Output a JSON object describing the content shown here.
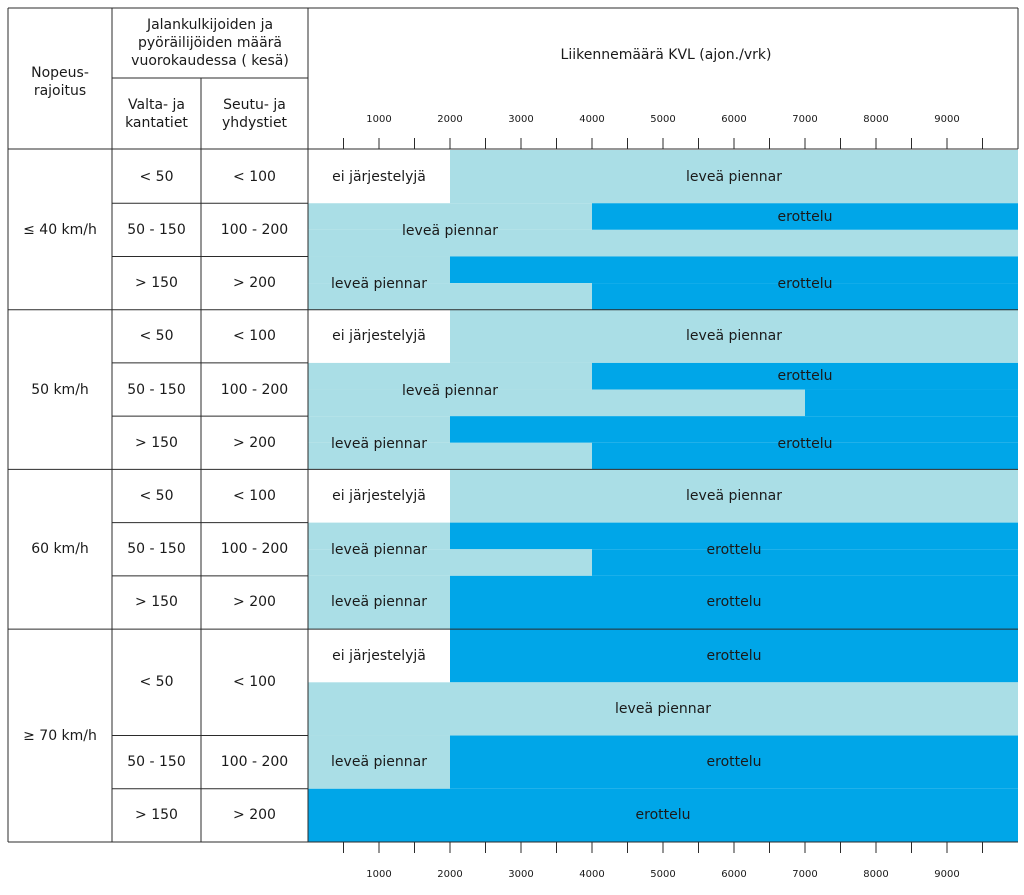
{
  "chart_data": {
    "type": "table",
    "title": "Liikennemäärä KVL (ajon./vrk)",
    "headers": {
      "speed": "Nopeus-\nrajoitus",
      "ped": "Jalankulkijoiden ja\npyöräilijöiden määrä\nvuorokaudessa ( kesä)",
      "main_roads": "Valta- ja\nkantatiet",
      "regional_roads": "Seutu- ja\nyhdystiet"
    },
    "x_axis": {
      "min": 0,
      "max": 10000,
      "tick_labels": [
        "1000",
        "2000",
        "3000",
        "4000",
        "5000",
        "6000",
        "7000",
        "8000",
        "9000"
      ],
      "tick_values": [
        1000,
        2000,
        3000,
        4000,
        5000,
        6000,
        7000,
        8000,
        9000
      ],
      "minor_ticks": [
        500,
        1500,
        2500,
        3500,
        4500,
        5500,
        6500,
        7500,
        8500,
        9500
      ]
    },
    "colors": {
      "none": "#ffffff",
      "shoulder": "#aadee6",
      "separation": "#00a6e8",
      "grid": "#2b2b2b"
    },
    "categories": {
      "none": "ei järjestelyjä",
      "shoulder": "leveä piennar",
      "separation": "erottelu"
    },
    "groups": [
      {
        "speed": "≤ 40 km/h",
        "rows": [
          {
            "valta": "< 50",
            "seutu": "< 100",
            "bands": [
              [
                {
                  "from": 0,
                  "to": 2000,
                  "cat": "none",
                  "label": "ei järjestelyjä"
                },
                {
                  "from": 2000,
                  "to": 10000,
                  "cat": "shoulder",
                  "label": "leveä piennar"
                }
              ]
            ]
          },
          {
            "valta": "50 - 150",
            "seutu": "100 - 200",
            "bands": [
              [
                {
                  "from": 0,
                  "to": 4000,
                  "cat": "shoulder",
                  "label": ""
                },
                {
                  "from": 4000,
                  "to": 10000,
                  "cat": "separation",
                  "label": "erottelu"
                }
              ],
              [
                {
                  "from": 0,
                  "to": 10000,
                  "cat": "shoulder",
                  "label": ""
                }
              ]
            ],
            "merged_labels": [
              {
                "text": "leveä piennar",
                "from": 0,
                "to": 4000
              }
            ]
          },
          {
            "valta": "> 150",
            "seutu": "> 200",
            "bands": [
              [
                {
                  "from": 0,
                  "to": 2000,
                  "cat": "shoulder",
                  "label": ""
                },
                {
                  "from": 2000,
                  "to": 10000,
                  "cat": "separation",
                  "label": ""
                }
              ],
              [
                {
                  "from": 0,
                  "to": 4000,
                  "cat": "shoulder",
                  "label": ""
                },
                {
                  "from": 4000,
                  "to": 10000,
                  "cat": "separation",
                  "label": ""
                }
              ]
            ],
            "merged_labels": [
              {
                "text": "leveä piennar",
                "from": 0,
                "to": 2000
              },
              {
                "text": "erottelu",
                "from": 4000,
                "to": 10000
              }
            ]
          }
        ]
      },
      {
        "speed": "50 km/h",
        "rows": [
          {
            "valta": "< 50",
            "seutu": "< 100",
            "bands": [
              [
                {
                  "from": 0,
                  "to": 2000,
                  "cat": "none",
                  "label": "ei järjestelyjä"
                },
                {
                  "from": 2000,
                  "to": 10000,
                  "cat": "shoulder",
                  "label": "leveä piennar"
                }
              ]
            ]
          },
          {
            "valta": "50 - 150",
            "seutu": "100 - 200",
            "bands": [
              [
                {
                  "from": 0,
                  "to": 4000,
                  "cat": "shoulder",
                  "label": ""
                },
                {
                  "from": 4000,
                  "to": 10000,
                  "cat": "separation",
                  "label": "erottelu"
                }
              ],
              [
                {
                  "from": 0,
                  "to": 7000,
                  "cat": "shoulder",
                  "label": ""
                },
                {
                  "from": 7000,
                  "to": 10000,
                  "cat": "separation",
                  "label": ""
                }
              ]
            ],
            "merged_labels": [
              {
                "text": "leveä piennar",
                "from": 0,
                "to": 4000
              }
            ]
          },
          {
            "valta": "> 150",
            "seutu": "> 200",
            "bands": [
              [
                {
                  "from": 0,
                  "to": 2000,
                  "cat": "shoulder",
                  "label": ""
                },
                {
                  "from": 2000,
                  "to": 10000,
                  "cat": "separation",
                  "label": ""
                }
              ],
              [
                {
                  "from": 0,
                  "to": 4000,
                  "cat": "shoulder",
                  "label": ""
                },
                {
                  "from": 4000,
                  "to": 10000,
                  "cat": "separation",
                  "label": ""
                }
              ]
            ],
            "merged_labels": [
              {
                "text": "leveä piennar",
                "from": 0,
                "to": 2000
              },
              {
                "text": "erottelu",
                "from": 4000,
                "to": 10000
              }
            ]
          }
        ]
      },
      {
        "speed": "60 km/h",
        "rows": [
          {
            "valta": "< 50",
            "seutu": "< 100",
            "bands": [
              [
                {
                  "from": 0,
                  "to": 2000,
                  "cat": "none",
                  "label": "ei järjestelyjä"
                },
                {
                  "from": 2000,
                  "to": 10000,
                  "cat": "shoulder",
                  "label": "leveä piennar"
                }
              ]
            ]
          },
          {
            "valta": "50 - 150",
            "seutu": "100 - 200",
            "bands": [
              [
                {
                  "from": 0,
                  "to": 2000,
                  "cat": "shoulder",
                  "label": ""
                },
                {
                  "from": 2000,
                  "to": 10000,
                  "cat": "separation",
                  "label": ""
                }
              ],
              [
                {
                  "from": 0,
                  "to": 4000,
                  "cat": "shoulder",
                  "label": ""
                },
                {
                  "from": 4000,
                  "to": 10000,
                  "cat": "separation",
                  "label": ""
                }
              ]
            ],
            "merged_labels": [
              {
                "text": "leveä piennar",
                "from": 0,
                "to": 2000
              },
              {
                "text": "erottelu",
                "from": 2000,
                "to": 10000
              }
            ]
          },
          {
            "valta": "> 150",
            "seutu": "> 200",
            "bands": [
              [
                {
                  "from": 0,
                  "to": 2000,
                  "cat": "shoulder",
                  "label": "leveä piennar"
                },
                {
                  "from": 2000,
                  "to": 10000,
                  "cat": "separation",
                  "label": "erottelu"
                }
              ]
            ]
          }
        ]
      },
      {
        "speed": "≥ 70 km/h",
        "rows": [
          {
            "valta": "< 50",
            "seutu": "< 100",
            "tall": true,
            "bands": [
              [
                {
                  "from": 0,
                  "to": 2000,
                  "cat": "none",
                  "label": "ei järjestelyjä"
                },
                {
                  "from": 2000,
                  "to": 10000,
                  "cat": "separation",
                  "label": "erottelu"
                }
              ],
              [
                {
                  "from": 0,
                  "to": 10000,
                  "cat": "shoulder",
                  "label": "leveä piennar"
                }
              ]
            ]
          },
          {
            "valta": "50 - 150",
            "seutu": "100 - 200",
            "bands": [
              [
                {
                  "from": 0,
                  "to": 2000,
                  "cat": "shoulder",
                  "label": "leveä piennar"
                },
                {
                  "from": 2000,
                  "to": 10000,
                  "cat": "separation",
                  "label": "erottelu"
                }
              ]
            ]
          },
          {
            "valta": "> 150",
            "seutu": "> 200",
            "bands": [
              [
                {
                  "from": 0,
                  "to": 10000,
                  "cat": "separation",
                  "label": "erottelu"
                }
              ]
            ]
          }
        ]
      }
    ]
  }
}
